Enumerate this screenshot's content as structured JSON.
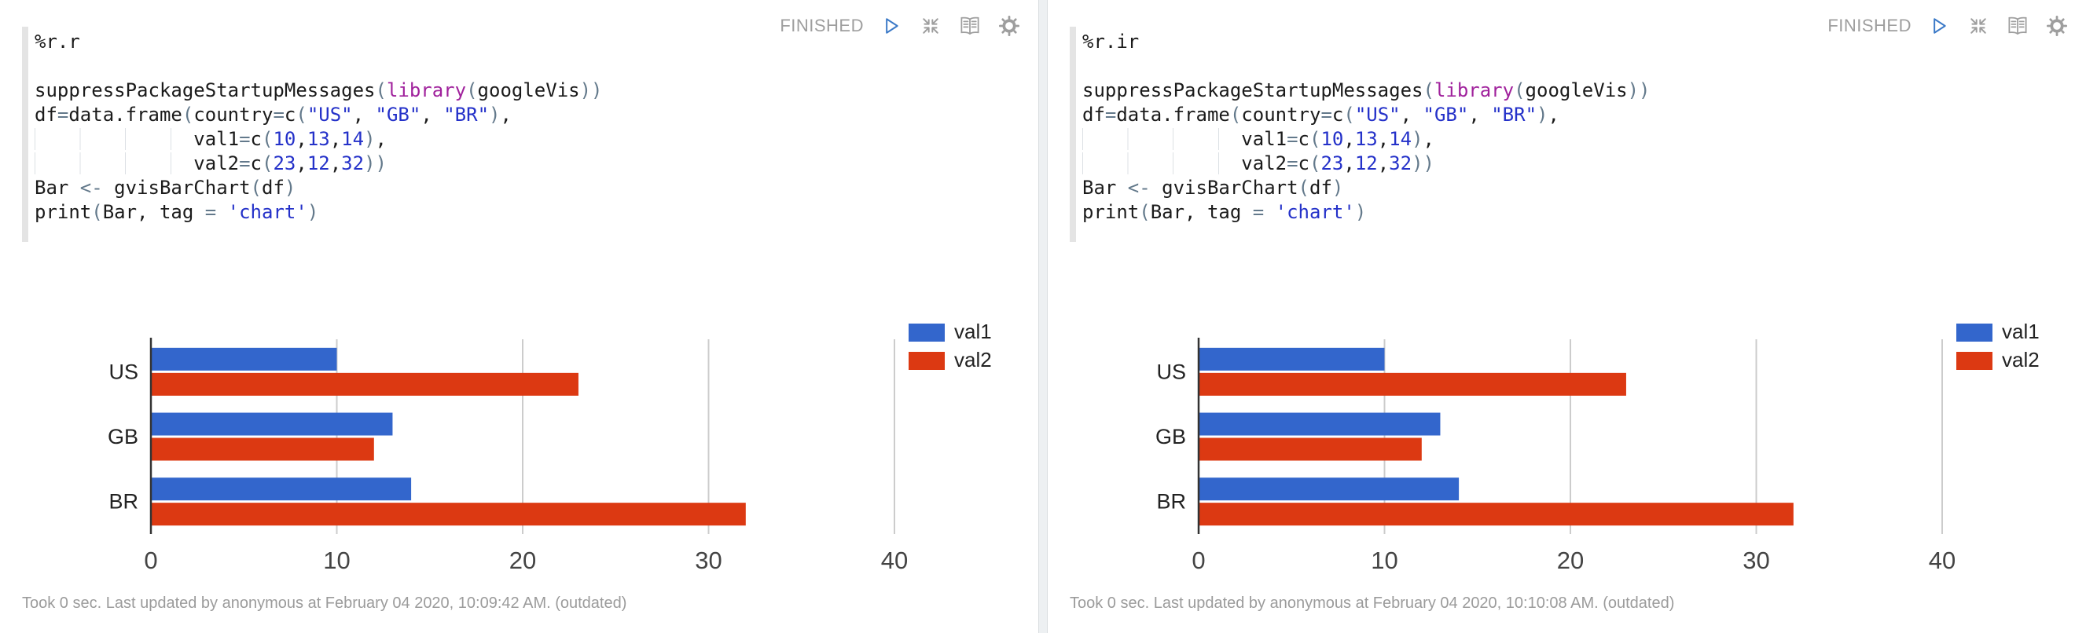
{
  "panels": [
    {
      "interpreter": "%r.r",
      "status": "FINISHED",
      "footer": "Took 0 sec. Last updated by anonymous at February 04 2020, 10:09:42 AM. (outdated)"
    },
    {
      "interpreter": "%r.ir",
      "status": "FINISHED",
      "footer": "Took 0 sec. Last updated by anonymous at February 04 2020, 10:10:08 AM. (outdated)"
    }
  ],
  "toolbar": {
    "icons": [
      "run-play-icon",
      "collapse-arrows-icon",
      "open-book-icon",
      "gear-icon"
    ]
  },
  "code_lines": [
    [
      [
        "t",
        "suppressPackageStartupMessages"
      ],
      [
        "p",
        "("
      ],
      [
        "kw",
        "library"
      ],
      [
        "p",
        "("
      ],
      [
        "t",
        "googleVis"
      ],
      [
        "p",
        "))"
      ]
    ],
    [
      [
        "t",
        "df"
      ],
      [
        "op",
        "="
      ],
      [
        "t",
        "data.frame"
      ],
      [
        "p",
        "("
      ],
      [
        "t",
        "country"
      ],
      [
        "op",
        "="
      ],
      [
        "t",
        "c"
      ],
      [
        "p",
        "("
      ],
      [
        "s",
        "\"US\""
      ],
      [
        "t",
        ", "
      ],
      [
        "s",
        "\"GB\""
      ],
      [
        "t",
        ", "
      ],
      [
        "s",
        "\"BR\""
      ],
      [
        "p",
        ")"
      ],
      [
        "t",
        ","
      ]
    ],
    [
      [
        "ind",
        "              "
      ],
      [
        "t",
        "val1"
      ],
      [
        "op",
        "="
      ],
      [
        "t",
        "c"
      ],
      [
        "p",
        "("
      ],
      [
        "n",
        "10"
      ],
      [
        "t",
        ","
      ],
      [
        "n",
        "13"
      ],
      [
        "t",
        ","
      ],
      [
        "n",
        "14"
      ],
      [
        "p",
        ")"
      ],
      [
        "t",
        ","
      ]
    ],
    [
      [
        "ind",
        "              "
      ],
      [
        "t",
        "val2"
      ],
      [
        "op",
        "="
      ],
      [
        "t",
        "c"
      ],
      [
        "p",
        "("
      ],
      [
        "n",
        "23"
      ],
      [
        "t",
        ","
      ],
      [
        "n",
        "12"
      ],
      [
        "t",
        ","
      ],
      [
        "n",
        "32"
      ],
      [
        "p",
        "))"
      ]
    ],
    [
      [
        "t",
        "Bar "
      ],
      [
        "op",
        "<-"
      ],
      [
        "t",
        " gvisBarChart"
      ],
      [
        "p",
        "("
      ],
      [
        "t",
        "df"
      ],
      [
        "p",
        ")"
      ]
    ],
    [
      [
        "t",
        "print"
      ],
      [
        "p",
        "("
      ],
      [
        "t",
        "Bar, tag "
      ],
      [
        "op",
        "="
      ],
      [
        "t",
        " "
      ],
      [
        "s",
        "'chart'"
      ],
      [
        "p",
        ")"
      ]
    ]
  ],
  "chart_data": [
    {
      "type": "bar",
      "orientation": "horizontal",
      "categories": [
        "US",
        "GB",
        "BR"
      ],
      "series": [
        {
          "name": "val1",
          "color": "#3366cc",
          "values": [
            10,
            13,
            14
          ]
        },
        {
          "name": "val2",
          "color": "#dc3912",
          "values": [
            23,
            12,
            32
          ]
        }
      ],
      "xticks": [
        0,
        10,
        20,
        30,
        40
      ],
      "xlim": [
        0,
        44
      ],
      "grid": true,
      "legend_position": "top-right"
    },
    {
      "type": "bar",
      "orientation": "horizontal",
      "categories": [
        "US",
        "GB",
        "BR"
      ],
      "series": [
        {
          "name": "val1",
          "color": "#3366cc",
          "values": [
            10,
            13,
            14
          ]
        },
        {
          "name": "val2",
          "color": "#dc3912",
          "values": [
            23,
            12,
            32
          ]
        }
      ],
      "xticks": [
        0,
        10,
        20,
        30,
        40
      ],
      "xlim": [
        0,
        44
      ],
      "grid": true,
      "legend_position": "top-right"
    }
  ],
  "colors": {
    "bar_blue": "#3366cc",
    "bar_red": "#dc3912",
    "keyword_purple": "#a0219c",
    "string_blue": "#2431c9",
    "paren_gray": "#63798b",
    "status_gray": "#9e9e9e",
    "play_blue": "#3b79c7",
    "gutter_gray": "#e4e4e4"
  }
}
